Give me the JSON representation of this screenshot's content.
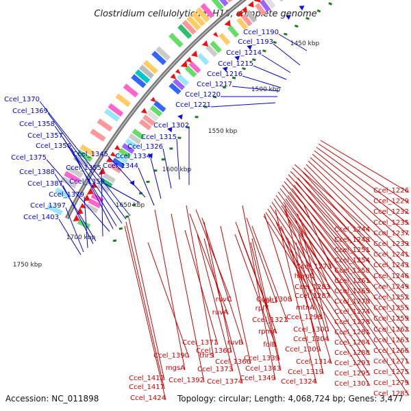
{
  "title": "Clostridium cellulolyticum H10, complete genome",
  "footer": {
    "accession": "Accession: NC_011898",
    "summary": "Topology: circular; Length: 4,068,724 bp; Genes: 3,477"
  },
  "colors": {
    "forward": "#1010dd",
    "reverse": "#ee1111",
    "backbone": "#7a7a7a",
    "tick": "#1f7a1f",
    "blue_label": "#0000cc",
    "red_label": "#cc0000"
  },
  "kbp_markers": [
    "1450 kbp",
    "1500 kbp",
    "1550 kbp",
    "1600 kbp",
    "1650 kbp",
    "1700 kbp",
    "1750 kbp"
  ],
  "blue_labels": [
    "Ccel_1190",
    "Ccel_1193",
    "Ccel_1214",
    "Ccel_1215",
    "Ccel_1216",
    "Ccel_1217",
    "Ccel_1220",
    "Ccel_1221",
    "Ccel_1302",
    "Ccel_1315",
    "Ccel_1326",
    "Ccel_1334",
    "Ccel_1344",
    "Ccel_1370",
    "Ccel_1369",
    "Ccel_1358",
    "Ccel_1357",
    "Ccel_1356",
    "Ccel_1345",
    "Ccel_1375",
    "Ccel_1355",
    "Ccel_1388",
    "Ccel_1359",
    "Ccel_1387",
    "Ccel_1379",
    "Ccel_1397",
    "Ccel_1403"
  ],
  "red_labels_right": [
    "Ccel_1226",
    "Ccel_1229",
    "Ccel_1232",
    "Ccel_1235",
    "Ccel_1237",
    "Ccel_1239",
    "Ccel_1241",
    "Ccel_1243",
    "Ccel_1246",
    "Ccel_1249",
    "Ccel_1252",
    "Ccel_1255",
    "Ccel_1259",
    "Ccel_1262",
    "Ccel_1263",
    "Ccel_1266",
    "Ccel_1271",
    "Ccel_1275",
    "Ccel_1279",
    "Ccel_1285"
  ],
  "red_labels_mid": [
    "Ccel_1244",
    "Ccel_1248",
    "Ccel_1251",
    "Ccel_1254",
    "Ccel_1258",
    "Ccel_1261",
    "Ccel_1265",
    "Ccel_1270",
    "Ccel_1274",
    "Ccel_1278",
    "Ccel_1281",
    "Ccel_1284",
    "Ccel_1288",
    "Ccel_1293",
    "Ccel_1295",
    "Ccel_1301"
  ],
  "red_labels_inner": [
    "Ccel_1273",
    "hemC",
    "Ccel_1283",
    "Ccel_1287",
    "mtnA",
    "Ccel_1298",
    "Ccel_1300",
    "Ccel_1304",
    "Ccel_1309",
    "Ccel_1314",
    "Ccel_1319",
    "Ccel_1324",
    "Ccel_1308",
    "rplU",
    "rplT",
    "Ccel_1321",
    "rpmA",
    "folE",
    "Ccel_1339",
    "Ccel_1343",
    "Ccel_1349",
    "ruvC",
    "ruvA",
    "ruvB",
    "Ccel_1360",
    "Ccel_1366",
    "Ccel_1371",
    "Ccel_1373",
    "Ccel_1374",
    "Ccel_1390",
    "thrS",
    "mgsA",
    "Ccel_1392",
    "Ccel_1412",
    "Ccel_1417",
    "Ccel_1424"
  ]
}
